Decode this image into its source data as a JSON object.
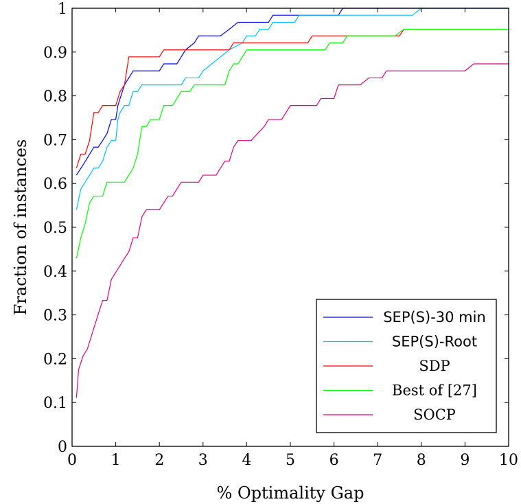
{
  "chart_data": {
    "type": "line",
    "title": "",
    "xlabel": "% Optimality Gap",
    "ylabel": "Fraction of instances",
    "xlim": [
      0,
      10
    ],
    "ylim": [
      0,
      1
    ],
    "xticks": [
      0,
      1,
      2,
      3,
      4,
      5,
      6,
      7,
      8,
      9,
      10
    ],
    "xtick_labels": [
      "0",
      "1",
      "2",
      "3",
      "4",
      "5",
      "6",
      "7",
      "8",
      "9",
      "10"
    ],
    "yticks": [
      0,
      0.1,
      0.2,
      0.3,
      0.4,
      0.5,
      0.6,
      0.7,
      0.8,
      0.9,
      1
    ],
    "ytick_labels": [
      "0",
      "0.1",
      "0.2",
      "0.3",
      "0.4",
      "0.5",
      "0.6",
      "0.7",
      "0.8",
      "0.9",
      "1"
    ],
    "grid": false,
    "legend_position": "bottom-right",
    "series": [
      {
        "name": "SEP(S)-30 min",
        "color": "#0000ff",
        "points": [
          [
            0.1,
            0.619
          ],
          [
            0.3,
            0.65
          ],
          [
            0.5,
            0.683
          ],
          [
            0.6,
            0.683
          ],
          [
            0.7,
            0.698
          ],
          [
            0.8,
            0.714
          ],
          [
            0.9,
            0.746
          ],
          [
            1.0,
            0.746
          ],
          [
            1.05,
            0.778
          ],
          [
            1.1,
            0.794
          ],
          [
            1.2,
            0.825
          ],
          [
            1.3,
            0.841
          ],
          [
            1.4,
            0.857
          ],
          [
            1.5,
            0.857
          ],
          [
            2.0,
            0.857
          ],
          [
            2.1,
            0.873
          ],
          [
            2.4,
            0.873
          ],
          [
            2.6,
            0.905
          ],
          [
            2.8,
            0.921
          ],
          [
            2.9,
            0.937
          ],
          [
            3.4,
            0.937
          ],
          [
            3.6,
            0.952
          ],
          [
            3.8,
            0.968
          ],
          [
            4.5,
            0.968
          ],
          [
            4.6,
            0.984
          ],
          [
            6.1,
            0.984
          ],
          [
            6.2,
            1.0
          ],
          [
            10.0,
            1.0
          ]
        ]
      },
      {
        "name": "SEP(S)-Root",
        "color": "#00bfff",
        "points": [
          [
            0.1,
            0.54
          ],
          [
            0.2,
            0.587
          ],
          [
            0.3,
            0.603
          ],
          [
            0.5,
            0.635
          ],
          [
            0.6,
            0.635
          ],
          [
            0.7,
            0.651
          ],
          [
            0.8,
            0.683
          ],
          [
            0.9,
            0.698
          ],
          [
            1.0,
            0.698
          ],
          [
            1.05,
            0.746
          ],
          [
            1.1,
            0.762
          ],
          [
            1.2,
            0.778
          ],
          [
            1.3,
            0.778
          ],
          [
            1.4,
            0.81
          ],
          [
            1.5,
            0.81
          ],
          [
            1.6,
            0.825
          ],
          [
            2.5,
            0.825
          ],
          [
            2.6,
            0.841
          ],
          [
            2.9,
            0.841
          ],
          [
            3.0,
            0.857
          ],
          [
            3.2,
            0.873
          ],
          [
            3.4,
            0.889
          ],
          [
            3.6,
            0.905
          ],
          [
            3.9,
            0.921
          ],
          [
            4.0,
            0.937
          ],
          [
            4.2,
            0.937
          ],
          [
            4.3,
            0.952
          ],
          [
            4.5,
            0.952
          ],
          [
            4.6,
            0.968
          ],
          [
            5.1,
            0.968
          ],
          [
            5.2,
            0.984
          ],
          [
            7.8,
            0.984
          ],
          [
            8.0,
            1.0
          ],
          [
            10.0,
            1.0
          ]
        ]
      },
      {
        "name": "SDP",
        "color": "#ff0000",
        "points": [
          [
            0.1,
            0.635
          ],
          [
            0.2,
            0.667
          ],
          [
            0.3,
            0.667
          ],
          [
            0.4,
            0.698
          ],
          [
            0.5,
            0.762
          ],
          [
            0.6,
            0.762
          ],
          [
            0.7,
            0.778
          ],
          [
            1.0,
            0.778
          ],
          [
            1.1,
            0.81
          ],
          [
            1.2,
            0.825
          ],
          [
            1.3,
            0.889
          ],
          [
            2.0,
            0.889
          ],
          [
            2.1,
            0.905
          ],
          [
            3.6,
            0.905
          ],
          [
            3.7,
            0.921
          ],
          [
            5.4,
            0.921
          ],
          [
            5.5,
            0.937
          ],
          [
            7.5,
            0.937
          ],
          [
            7.6,
            0.952
          ],
          [
            10.0,
            0.952
          ]
        ]
      },
      {
        "name": "Best of [27]",
        "color": "#00ff00",
        "points": [
          [
            0.1,
            0.429
          ],
          [
            0.2,
            0.476
          ],
          [
            0.3,
            0.508
          ],
          [
            0.4,
            0.556
          ],
          [
            0.5,
            0.571
          ],
          [
            0.7,
            0.571
          ],
          [
            0.8,
            0.603
          ],
          [
            1.2,
            0.603
          ],
          [
            1.4,
            0.635
          ],
          [
            1.5,
            0.667
          ],
          [
            1.6,
            0.73
          ],
          [
            1.7,
            0.73
          ],
          [
            1.8,
            0.746
          ],
          [
            2.0,
            0.746
          ],
          [
            2.1,
            0.778
          ],
          [
            2.3,
            0.778
          ],
          [
            2.4,
            0.794
          ],
          [
            2.5,
            0.81
          ],
          [
            2.7,
            0.81
          ],
          [
            2.8,
            0.825
          ],
          [
            3.5,
            0.825
          ],
          [
            3.6,
            0.857
          ],
          [
            3.7,
            0.873
          ],
          [
            3.8,
            0.873
          ],
          [
            4.0,
            0.905
          ],
          [
            5.8,
            0.905
          ],
          [
            5.9,
            0.921
          ],
          [
            6.2,
            0.921
          ],
          [
            6.3,
            0.937
          ],
          [
            7.4,
            0.937
          ],
          [
            7.6,
            0.952
          ],
          [
            10.0,
            0.952
          ]
        ]
      },
      {
        "name": "SOCP",
        "color": "#e0007f",
        "points": [
          [
            0.1,
            0.111
          ],
          [
            0.15,
            0.175
          ],
          [
            0.25,
            0.206
          ],
          [
            0.35,
            0.222
          ],
          [
            0.5,
            0.27
          ],
          [
            0.6,
            0.302
          ],
          [
            0.7,
            0.333
          ],
          [
            0.8,
            0.333
          ],
          [
            0.9,
            0.381
          ],
          [
            1.0,
            0.397
          ],
          [
            1.1,
            0.413
          ],
          [
            1.2,
            0.429
          ],
          [
            1.3,
            0.444
          ],
          [
            1.4,
            0.476
          ],
          [
            1.5,
            0.476
          ],
          [
            1.6,
            0.524
          ],
          [
            1.7,
            0.54
          ],
          [
            2.0,
            0.54
          ],
          [
            2.1,
            0.556
          ],
          [
            2.2,
            0.571
          ],
          [
            2.3,
            0.571
          ],
          [
            2.4,
            0.587
          ],
          [
            2.5,
            0.603
          ],
          [
            2.9,
            0.603
          ],
          [
            3.0,
            0.619
          ],
          [
            3.3,
            0.619
          ],
          [
            3.4,
            0.635
          ],
          [
            3.5,
            0.651
          ],
          [
            3.6,
            0.651
          ],
          [
            3.7,
            0.683
          ],
          [
            3.8,
            0.698
          ],
          [
            4.1,
            0.698
          ],
          [
            4.4,
            0.73
          ],
          [
            4.5,
            0.746
          ],
          [
            4.8,
            0.746
          ],
          [
            5.0,
            0.778
          ],
          [
            5.6,
            0.778
          ],
          [
            5.7,
            0.794
          ],
          [
            6.0,
            0.794
          ],
          [
            6.1,
            0.825
          ],
          [
            6.6,
            0.825
          ],
          [
            6.8,
            0.841
          ],
          [
            7.1,
            0.841
          ],
          [
            7.2,
            0.857
          ],
          [
            9.0,
            0.857
          ],
          [
            9.2,
            0.873
          ],
          [
            10.0,
            0.873
          ]
        ]
      }
    ]
  }
}
